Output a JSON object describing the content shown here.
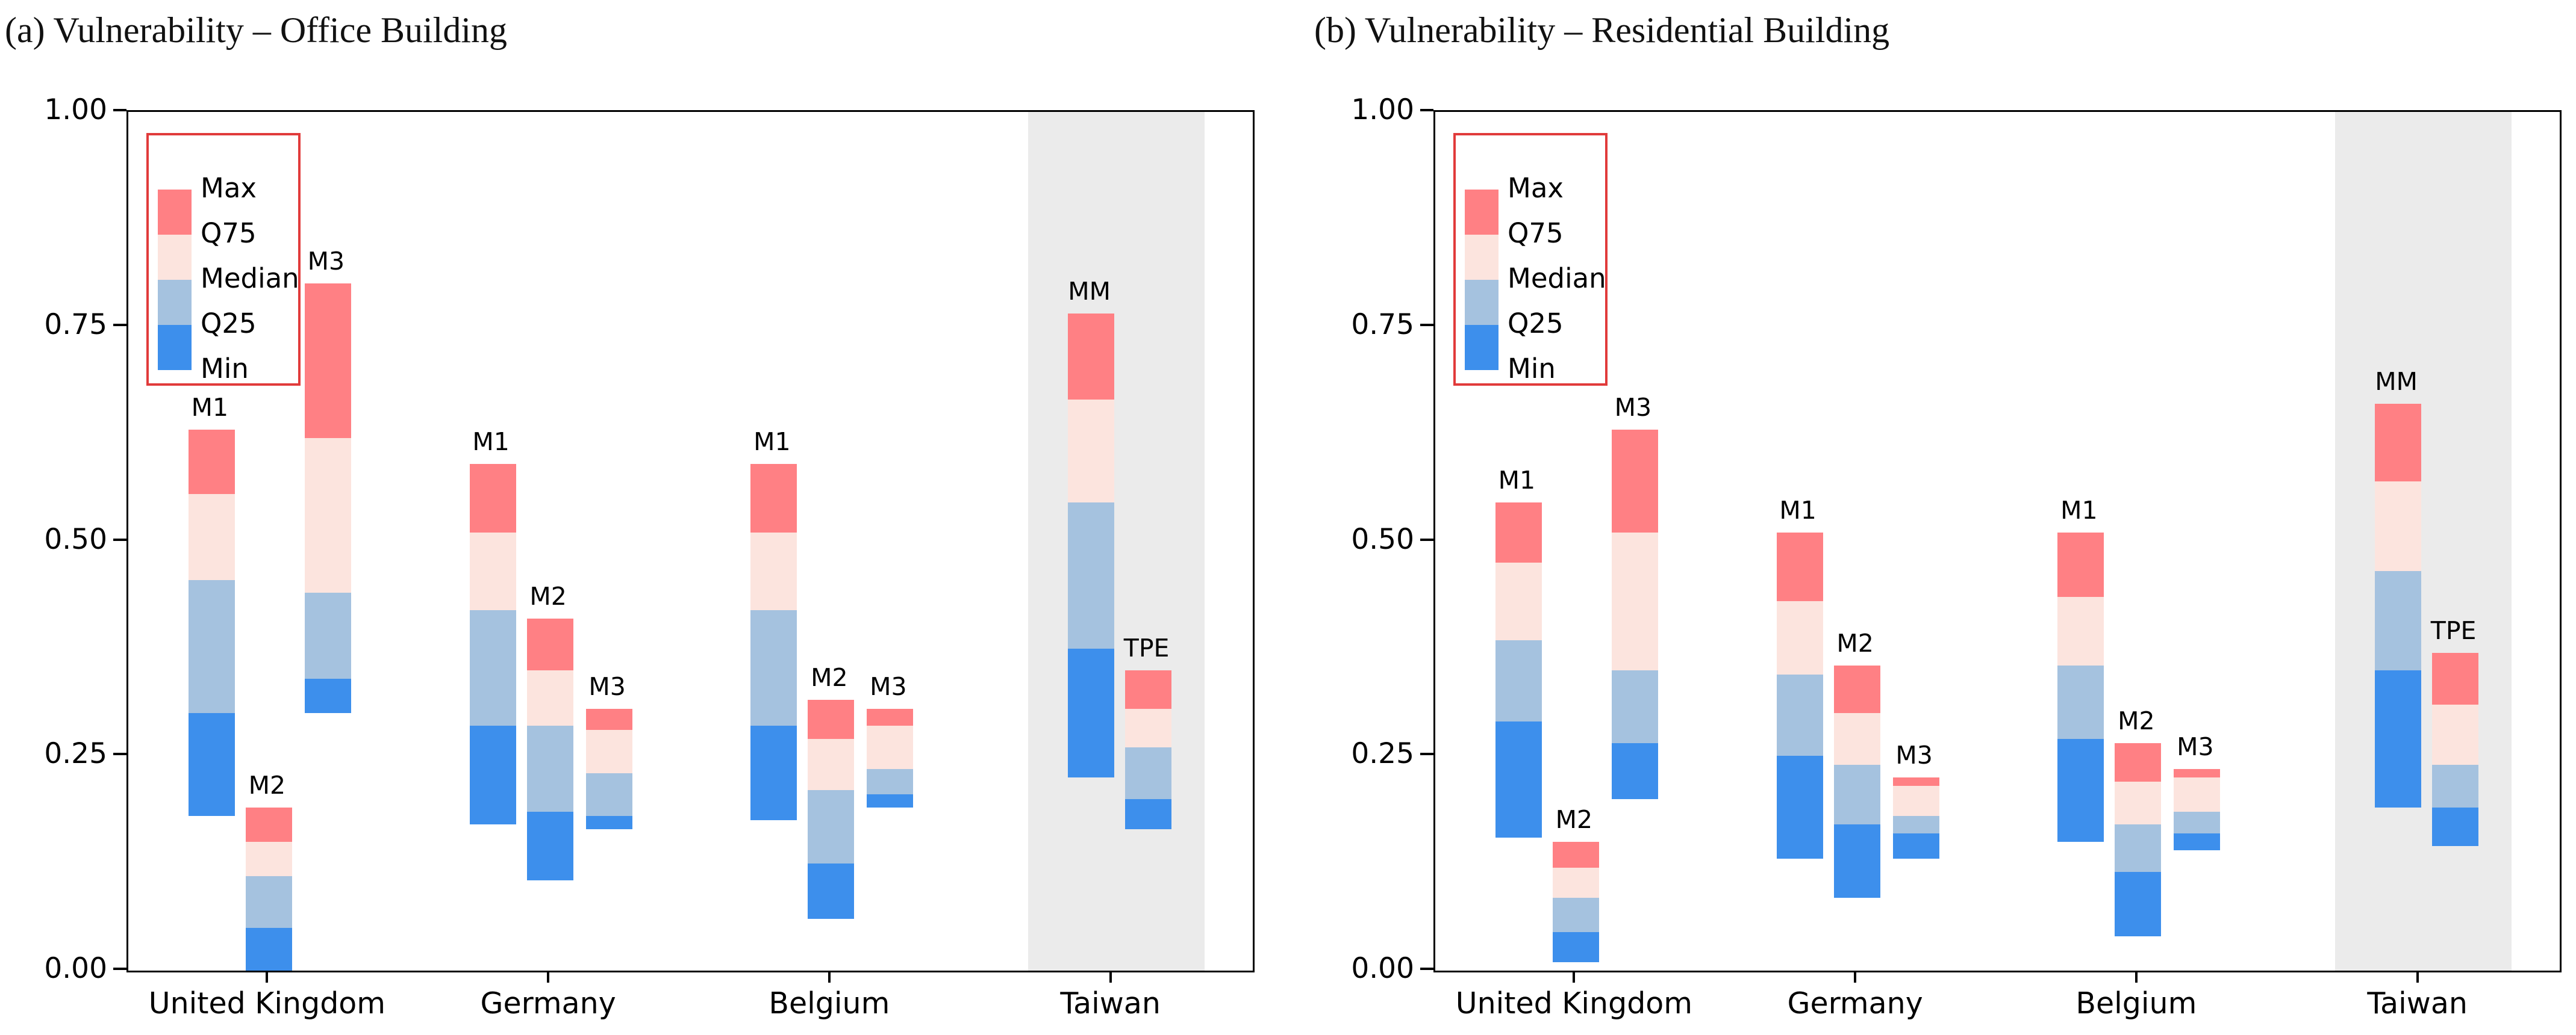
{
  "figure": {
    "colors": {
      "max_segment": "#FF8084",
      "q75_segment": "#FCE4DE",
      "median_segment": "#A5C2DF",
      "min_segment": "#3D8FEC",
      "axis": "#000000",
      "legend_border": "#E13B3B",
      "highlight_band": "#EBEBEB",
      "text": "#000000"
    },
    "legend": {
      "entries": [
        "Max",
        "Q75",
        "Median",
        "Q25",
        "Min"
      ]
    }
  },
  "chart_data": [
    {
      "type": "bar",
      "variant": "floating-range-stack",
      "title": "(a) Vulnerability – Office Building",
      "ylim": [
        0,
        1
      ],
      "yticks": [
        {
          "label": "1.00",
          "value": 1.0
        },
        {
          "label": "0.75",
          "value": 0.75
        },
        {
          "label": "0.50",
          "value": 0.5
        },
        {
          "label": "0.25",
          "value": 0.25
        },
        {
          "label": "0.00",
          "value": 0.0
        }
      ],
      "categories": [
        "United Kingdom",
        "Germany",
        "Belgium",
        "Taiwan"
      ],
      "highlighted_category": "Taiwan",
      "grid": false,
      "legend_position": "upper-left",
      "groups": [
        {
          "category": "United Kingdom",
          "bars": [
            {
              "label": "M1",
              "min": 0.18,
              "q25": 0.3,
              "median": 0.455,
              "q75": 0.555,
              "max": 0.63
            },
            {
              "label": "M2",
              "min": 0.0,
              "q25": 0.05,
              "median": 0.11,
              "q75": 0.15,
              "max": 0.19
            },
            {
              "label": "M3",
              "min": 0.3,
              "q25": 0.34,
              "median": 0.44,
              "q75": 0.62,
              "max": 0.8
            }
          ]
        },
        {
          "category": "Germany",
          "bars": [
            {
              "label": "M1",
              "min": 0.17,
              "q25": 0.285,
              "median": 0.42,
              "q75": 0.51,
              "max": 0.59
            },
            {
              "label": "M2",
              "min": 0.105,
              "q25": 0.185,
              "median": 0.285,
              "q75": 0.35,
              "max": 0.41
            },
            {
              "label": "M3",
              "min": 0.165,
              "q25": 0.18,
              "median": 0.23,
              "q75": 0.28,
              "max": 0.305
            }
          ]
        },
        {
          "category": "Belgium",
          "bars": [
            {
              "label": "M1",
              "min": 0.175,
              "q25": 0.285,
              "median": 0.42,
              "q75": 0.51,
              "max": 0.59
            },
            {
              "label": "M2",
              "min": 0.06,
              "q25": 0.125,
              "median": 0.21,
              "q75": 0.27,
              "max": 0.315
            },
            {
              "label": "M3",
              "min": 0.19,
              "q25": 0.205,
              "median": 0.235,
              "q75": 0.285,
              "max": 0.305
            }
          ]
        },
        {
          "category": "Taiwan",
          "bars": [
            {
              "label": "MM",
              "min": 0.225,
              "q25": 0.375,
              "median": 0.545,
              "q75": 0.665,
              "max": 0.765
            },
            {
              "label": "TPE",
              "min": 0.165,
              "q25": 0.2,
              "median": 0.26,
              "q75": 0.305,
              "max": 0.35
            }
          ]
        }
      ]
    },
    {
      "type": "bar",
      "variant": "floating-range-stack",
      "title": "(b) Vulnerability – Residential Building",
      "ylim": [
        0,
        1
      ],
      "yticks": [
        {
          "label": "1.00",
          "value": 1.0
        },
        {
          "label": "0.75",
          "value": 0.75
        },
        {
          "label": "0.50",
          "value": 0.5
        },
        {
          "label": "0.25",
          "value": 0.25
        },
        {
          "label": "0.00",
          "value": 0.0
        }
      ],
      "categories": [
        "United Kingdom",
        "Germany",
        "Belgium",
        "Taiwan"
      ],
      "highlighted_category": "Taiwan",
      "grid": false,
      "legend_position": "upper-left",
      "groups": [
        {
          "category": "United Kingdom",
          "bars": [
            {
              "label": "M1",
              "min": 0.155,
              "q25": 0.29,
              "median": 0.385,
              "q75": 0.475,
              "max": 0.545
            },
            {
              "label": "M2",
              "min": 0.01,
              "q25": 0.045,
              "median": 0.085,
              "q75": 0.12,
              "max": 0.15
            },
            {
              "label": "M3",
              "min": 0.2,
              "q25": 0.265,
              "median": 0.35,
              "q75": 0.51,
              "max": 0.63
            }
          ]
        },
        {
          "category": "Germany",
          "bars": [
            {
              "label": "M1",
              "min": 0.13,
              "q25": 0.25,
              "median": 0.345,
              "q75": 0.43,
              "max": 0.51
            },
            {
              "label": "M2",
              "min": 0.085,
              "q25": 0.17,
              "median": 0.24,
              "q75": 0.3,
              "max": 0.355
            },
            {
              "label": "M3",
              "min": 0.13,
              "q25": 0.16,
              "median": 0.18,
              "q75": 0.215,
              "max": 0.225
            }
          ]
        },
        {
          "category": "Belgium",
          "bars": [
            {
              "label": "M1",
              "min": 0.15,
              "q25": 0.27,
              "median": 0.355,
              "q75": 0.435,
              "max": 0.51
            },
            {
              "label": "M2",
              "min": 0.04,
              "q25": 0.115,
              "median": 0.17,
              "q75": 0.22,
              "max": 0.265
            },
            {
              "label": "M3",
              "min": 0.14,
              "q25": 0.16,
              "median": 0.185,
              "q75": 0.225,
              "max": 0.235
            }
          ]
        },
        {
          "category": "Taiwan",
          "bars": [
            {
              "label": "MM",
              "min": 0.19,
              "q25": 0.35,
              "median": 0.465,
              "q75": 0.57,
              "max": 0.66
            },
            {
              "label": "TPE",
              "min": 0.145,
              "q25": 0.19,
              "median": 0.24,
              "q75": 0.31,
              "max": 0.37
            }
          ]
        }
      ]
    }
  ]
}
